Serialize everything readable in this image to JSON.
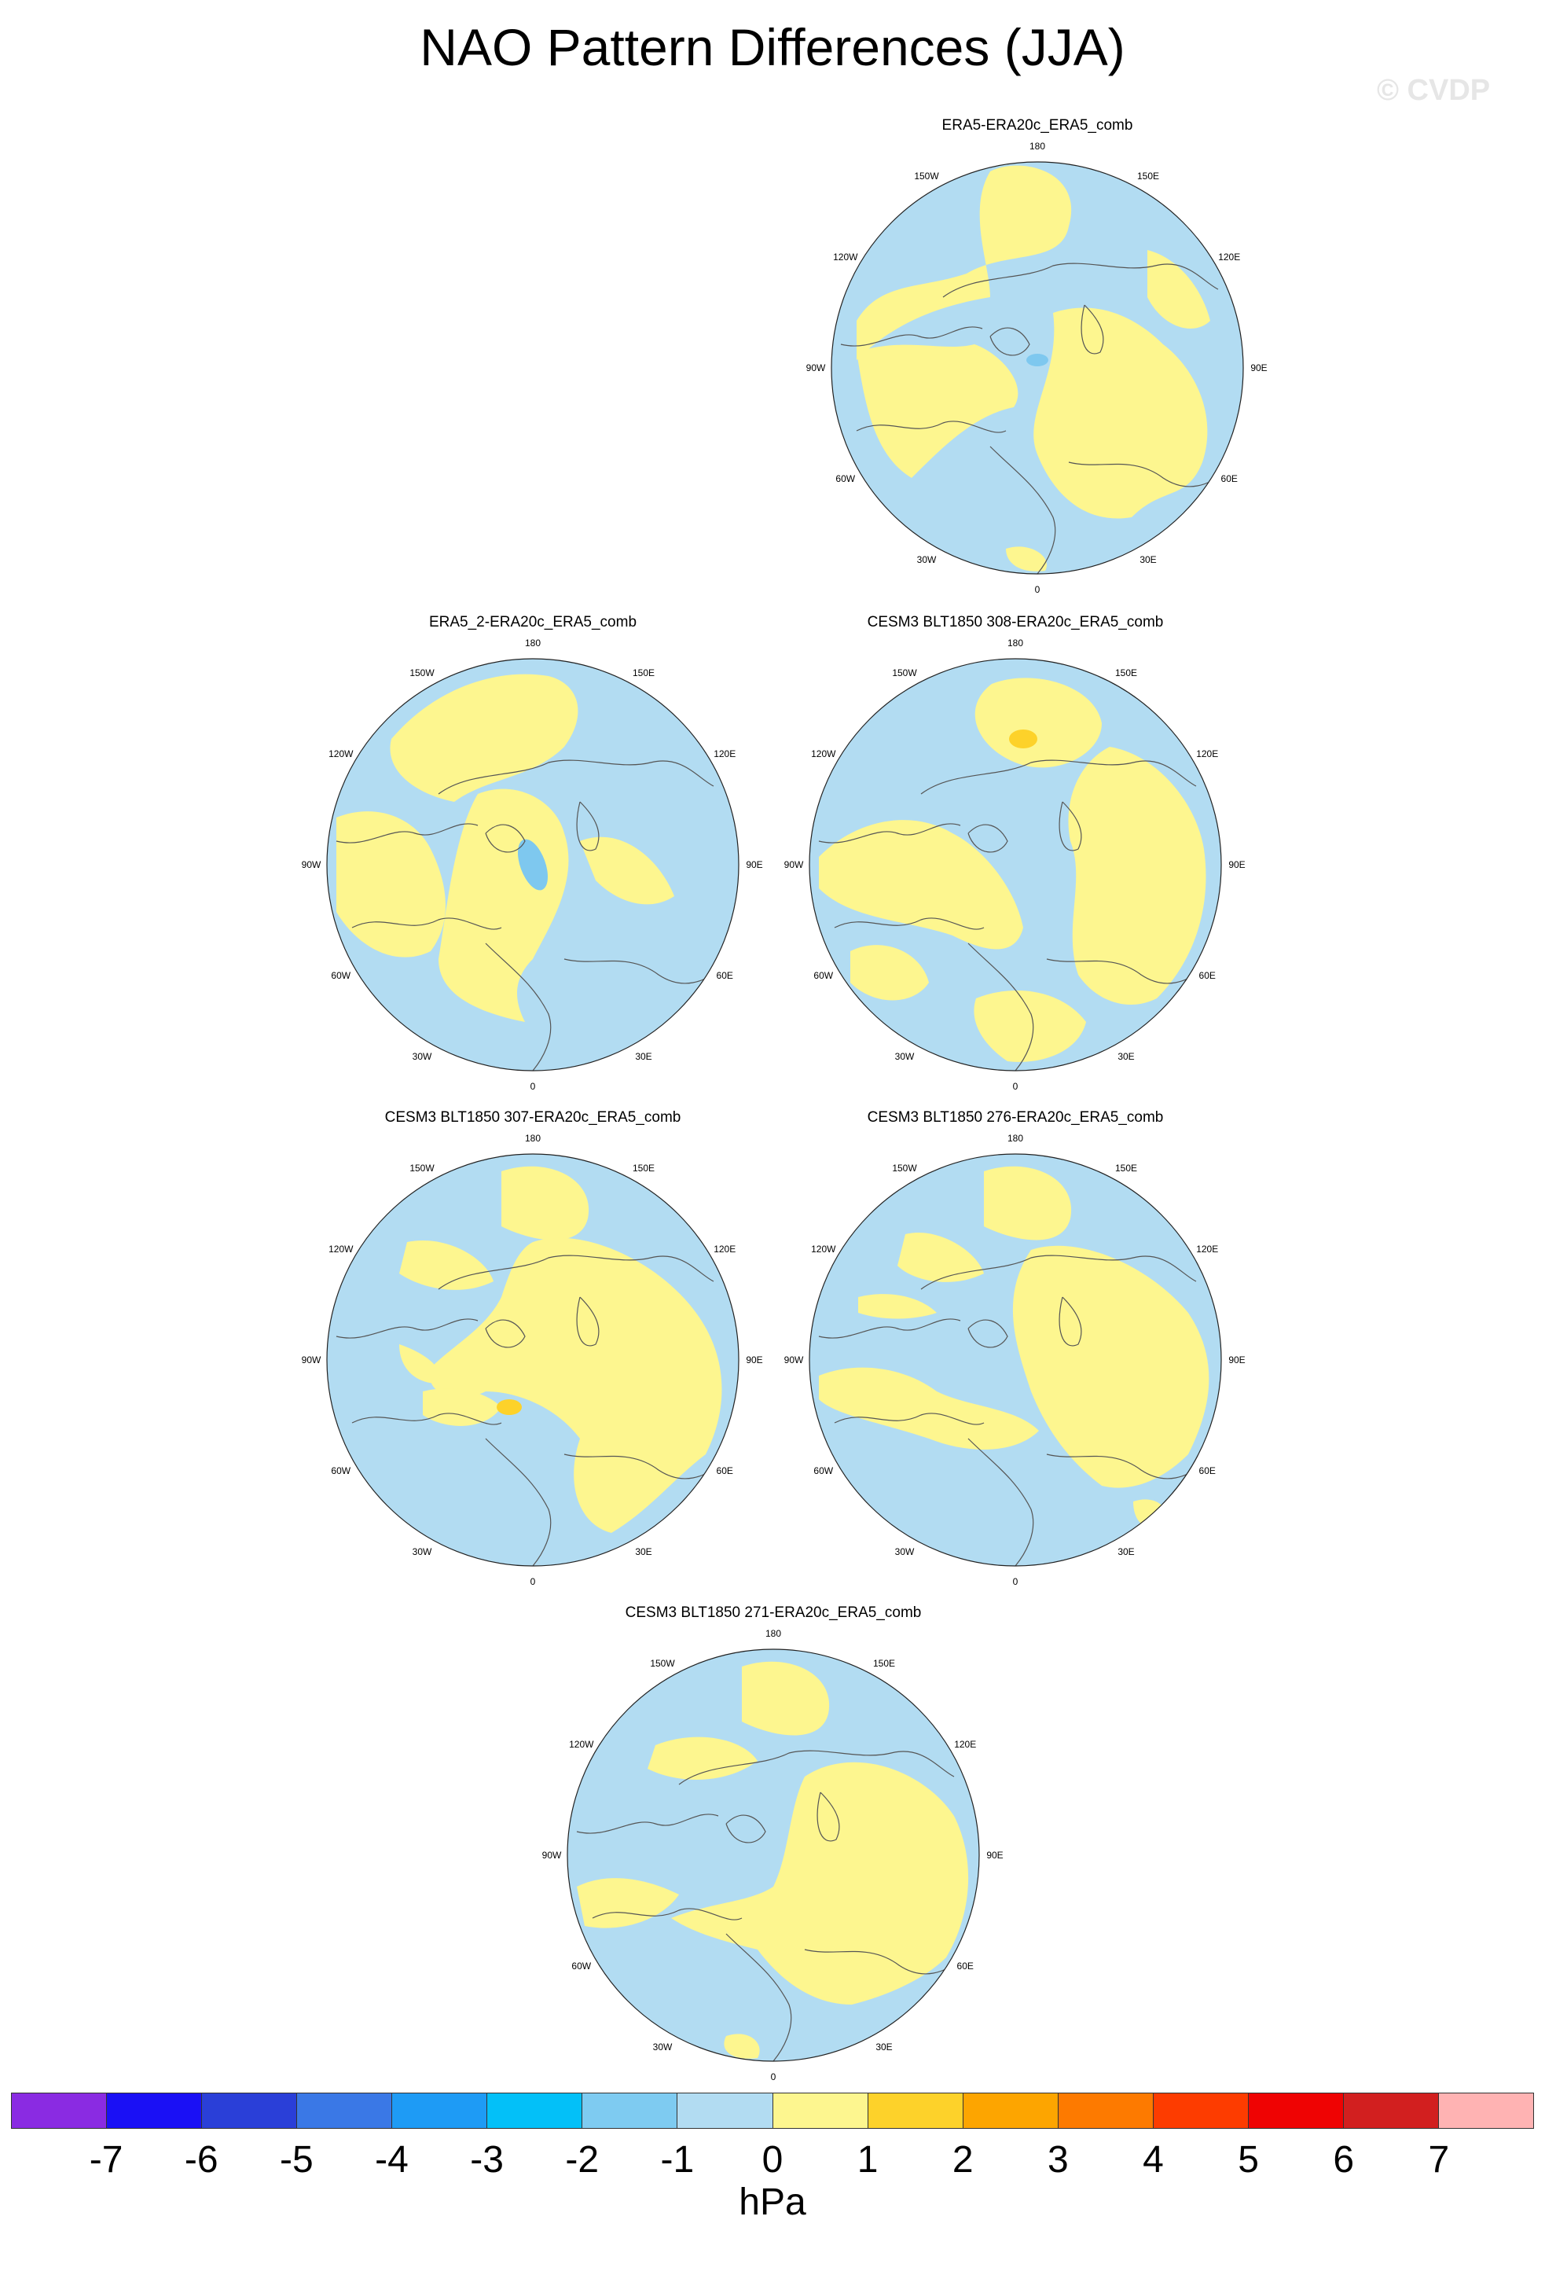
{
  "title": "NAO Pattern Differences (JJA)",
  "watermark": "© CVDP",
  "lon_labels": [
    "180",
    "150E",
    "120E",
    "90E",
    "60E",
    "30E",
    "0",
    "30W",
    "60W",
    "90W",
    "120W",
    "150W"
  ],
  "colors": {
    "ocean_light_blue": "#b2dcf2",
    "positive_0_1": "#fdf68f",
    "positive_1_2": "#fdd22a",
    "negative_1_2": "#7ec8ef",
    "coastline": "#555555"
  },
  "panels": [
    {
      "title": "ERA5-ERA20c_ERA5_comb"
    },
    {
      "title": "ERA5_2-ERA20c_ERA5_comb"
    },
    {
      "title": "CESM3 BLT1850 308-ERA20c_ERA5_comb"
    },
    {
      "title": "CESM3 BLT1850 307-ERA20c_ERA5_comb"
    },
    {
      "title": "CESM3 BLT1850 276-ERA20c_ERA5_comb"
    },
    {
      "title": "CESM3 BLT1850 271-ERA20c_ERA5_comb"
    }
  ],
  "colorbar": {
    "units": "hPa",
    "colors": [
      "#8a2be2",
      "#1a10f5",
      "#2a3fd8",
      "#3a78e6",
      "#1e9bf5",
      "#03c0f8",
      "#7ecbf1",
      "#b2dcf2",
      "#fdf68f",
      "#fdd22a",
      "#fda500",
      "#fd7a00",
      "#fd3c00",
      "#ef0303",
      "#d21f1f",
      "#ffb3b3"
    ],
    "tick_labels": [
      "-7",
      "-6",
      "-5",
      "-4",
      "-3",
      "-2",
      "-1",
      "0",
      "1",
      "2",
      "3",
      "4",
      "5",
      "6",
      "7"
    ]
  }
}
